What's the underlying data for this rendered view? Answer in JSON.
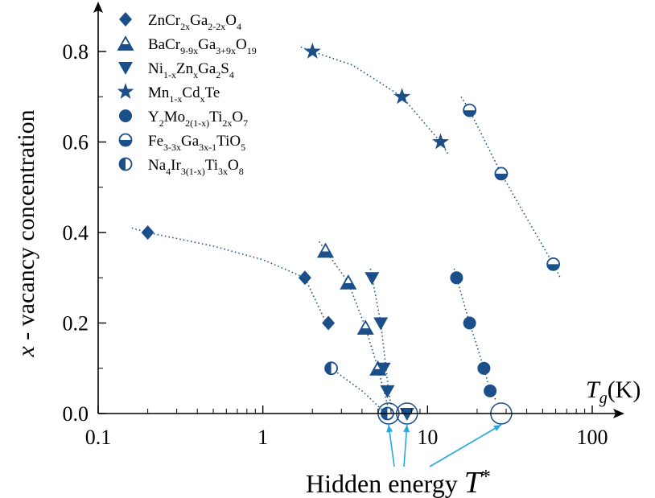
{
  "chart_data": {
    "type": "scatter",
    "xscale": "log",
    "xlim": [
      0.1,
      150
    ],
    "ylim": [
      0,
      0.9
    ],
    "xticks": [
      {
        "v": 0.1,
        "label": "0.1"
      },
      {
        "v": 1,
        "label": "1"
      },
      {
        "v": 10,
        "label": "10"
      },
      {
        "v": 100,
        "label": "100"
      }
    ],
    "yticks": [
      {
        "v": 0.0,
        "label": "0.0"
      },
      {
        "v": 0.2,
        "label": "0.2"
      },
      {
        "v": 0.4,
        "label": "0.4"
      },
      {
        "v": 0.6,
        "label": "0.6"
      },
      {
        "v": 0.8,
        "label": "0.8"
      }
    ],
    "ylabel": "x - vacancy concentration",
    "xlabel": "T_g(K)",
    "annotation": "Hidden energy T*",
    "grid": false,
    "legend_position": "top-left",
    "color": "#1a4f8a",
    "series": [
      {
        "name": "ZnCr2xGa2-2xO4",
        "legend": [
          [
            "ZnCr",
            ""
          ],
          [
            "2x",
            "sub"
          ],
          [
            "Ga",
            ""
          ],
          [
            "2-2x",
            "sub"
          ],
          [
            "O",
            ""
          ],
          [
            "4",
            "sub"
          ]
        ],
        "marker": "diamond",
        "x": [
          0.2,
          1.8,
          2.5
        ],
        "y": [
          0.4,
          0.3,
          0.2
        ]
      },
      {
        "name": "BaCr9-9xGa3+9xO19",
        "legend": [
          [
            "BaCr",
            ""
          ],
          [
            "9-9x",
            "sub"
          ],
          [
            "Ga",
            ""
          ],
          [
            "3+9x",
            "sub"
          ],
          [
            "O",
            ""
          ],
          [
            "19",
            "sub"
          ]
        ],
        "marker": "triangle-up-half",
        "x": [
          2.4,
          3.3,
          4.2,
          5.0
        ],
        "y": [
          0.36,
          0.29,
          0.19,
          0.1
        ]
      },
      {
        "name": "Ni1-xZnxGa2S4",
        "legend": [
          [
            "Ni",
            ""
          ],
          [
            "1-x",
            "sub"
          ],
          [
            "Zn",
            ""
          ],
          [
            "x",
            "sub"
          ],
          [
            "Ga",
            ""
          ],
          [
            "2",
            "sub"
          ],
          [
            "S",
            ""
          ],
          [
            "4",
            "sub"
          ]
        ],
        "marker": "triangle-down",
        "x": [
          4.6,
          5.2,
          5.4,
          5.7,
          7.5
        ],
        "y": [
          0.3,
          0.2,
          0.1,
          0.05,
          0.0
        ]
      },
      {
        "name": "Mn1-xCdxTe",
        "legend": [
          [
            "Mn",
            ""
          ],
          [
            "1-x",
            "sub"
          ],
          [
            "Cd",
            ""
          ],
          [
            "x",
            "sub"
          ],
          [
            "Te",
            ""
          ]
        ],
        "marker": "star",
        "x": [
          2.0,
          7.0,
          12.0
        ],
        "y": [
          0.8,
          0.7,
          0.6
        ]
      },
      {
        "name": "Y2Mo2(1-x)Ti2xO7",
        "legend": [
          [
            "Y",
            ""
          ],
          [
            "2",
            "sub"
          ],
          [
            "Mo",
            ""
          ],
          [
            "2(1-x)",
            "sub"
          ],
          [
            "Ti",
            ""
          ],
          [
            "2x",
            "sub"
          ],
          [
            "O",
            ""
          ],
          [
            "7",
            "sub"
          ]
        ],
        "marker": "circle",
        "x": [
          15.0,
          18.0,
          22.0,
          24.0
        ],
        "y": [
          0.3,
          0.2,
          0.1,
          0.05
        ]
      },
      {
        "name": "Fe3-3xGa3x-1TiO5",
        "legend": [
          [
            "Fe",
            ""
          ],
          [
            "3-3x",
            "sub"
          ],
          [
            "Ga",
            ""
          ],
          [
            "3x-1",
            "sub"
          ],
          [
            "TiO",
            ""
          ],
          [
            "5",
            "sub"
          ]
        ],
        "marker": "circle-bottom-half",
        "x": [
          18.0,
          28.0,
          58.0
        ],
        "y": [
          0.67,
          0.53,
          0.33
        ]
      },
      {
        "name": "Na4Ir3(1-x)Ti3xO8",
        "legend": [
          [
            "Na",
            ""
          ],
          [
            "4",
            "sub"
          ],
          [
            "Ir",
            ""
          ],
          [
            "3(1-x)",
            "sub"
          ],
          [
            "Ti",
            ""
          ],
          [
            "3x",
            "sub"
          ],
          [
            "O",
            ""
          ],
          [
            "8",
            "sub"
          ]
        ],
        "marker": "circle-left-half",
        "x": [
          2.6,
          5.7
        ],
        "y": [
          0.1,
          0.0
        ]
      }
    ],
    "guide_lines": [
      {
        "x": [
          0.16,
          0.2,
          0.5,
          1.0,
          1.8,
          2.5
        ],
        "y": [
          0.41,
          0.4,
          0.37,
          0.34,
          0.3,
          0.19
        ]
      },
      {
        "x": [
          2.2,
          2.4,
          3.3,
          4.2,
          5.0,
          5.9
        ],
        "y": [
          0.38,
          0.36,
          0.29,
          0.19,
          0.1,
          0.0
        ]
      },
      {
        "x": [
          4.5,
          5.2,
          5.6,
          5.8,
          6.0
        ],
        "y": [
          0.32,
          0.2,
          0.1,
          0.05,
          0.02
        ]
      },
      {
        "x": [
          1.7,
          2.0,
          3.5,
          7.0,
          12.0,
          13.5
        ],
        "y": [
          0.81,
          0.8,
          0.77,
          0.7,
          0.6,
          0.57
        ]
      },
      {
        "x": [
          14.5,
          15.0,
          18.0,
          22.0,
          24.0,
          26.0
        ],
        "y": [
          0.32,
          0.3,
          0.2,
          0.1,
          0.05,
          0.03
        ]
      },
      {
        "x": [
          16.0,
          18.0,
          28.0,
          58.0,
          64.0
        ],
        "y": [
          0.7,
          0.67,
          0.53,
          0.33,
          0.3
        ]
      },
      {
        "x": [
          2.6,
          4.0,
          5.6
        ],
        "y": [
          0.1,
          0.05,
          0.0
        ]
      }
    ],
    "hidden_energy_circles": [
      {
        "x": 5.8,
        "y": 0.0
      },
      {
        "x": 7.5,
        "y": 0.0
      },
      {
        "x": 28.0,
        "y": 0.0
      }
    ]
  }
}
